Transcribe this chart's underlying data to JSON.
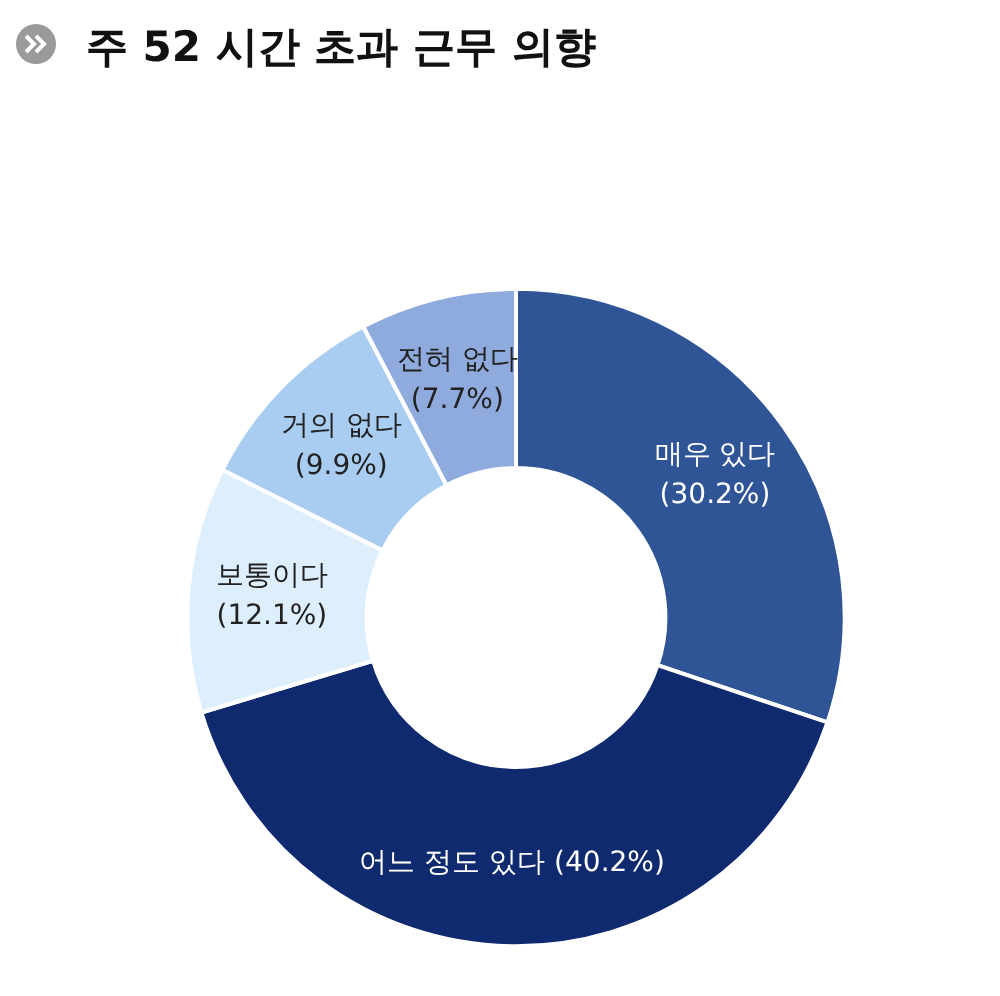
{
  "chart_data": {
    "type": "donut",
    "title": "주 52 시간 초과 근무 의향",
    "categories": [
      "매우 있다",
      "어느 정도 있다",
      "보통이다",
      "거의 없다",
      "전혀 없다"
    ],
    "values": [
      30.2,
      40.2,
      12.1,
      9.9,
      7.7
    ],
    "colors": [
      "#2f5597",
      "#0f2a6e",
      "#ddeefc",
      "#a9cdf0",
      "#8faadc"
    ],
    "value_labels": [
      "(30.2%)",
      "(40.2%)",
      "(12.1%)",
      "(9.9%)",
      "(7.7%)"
    ],
    "legend": false
  }
}
